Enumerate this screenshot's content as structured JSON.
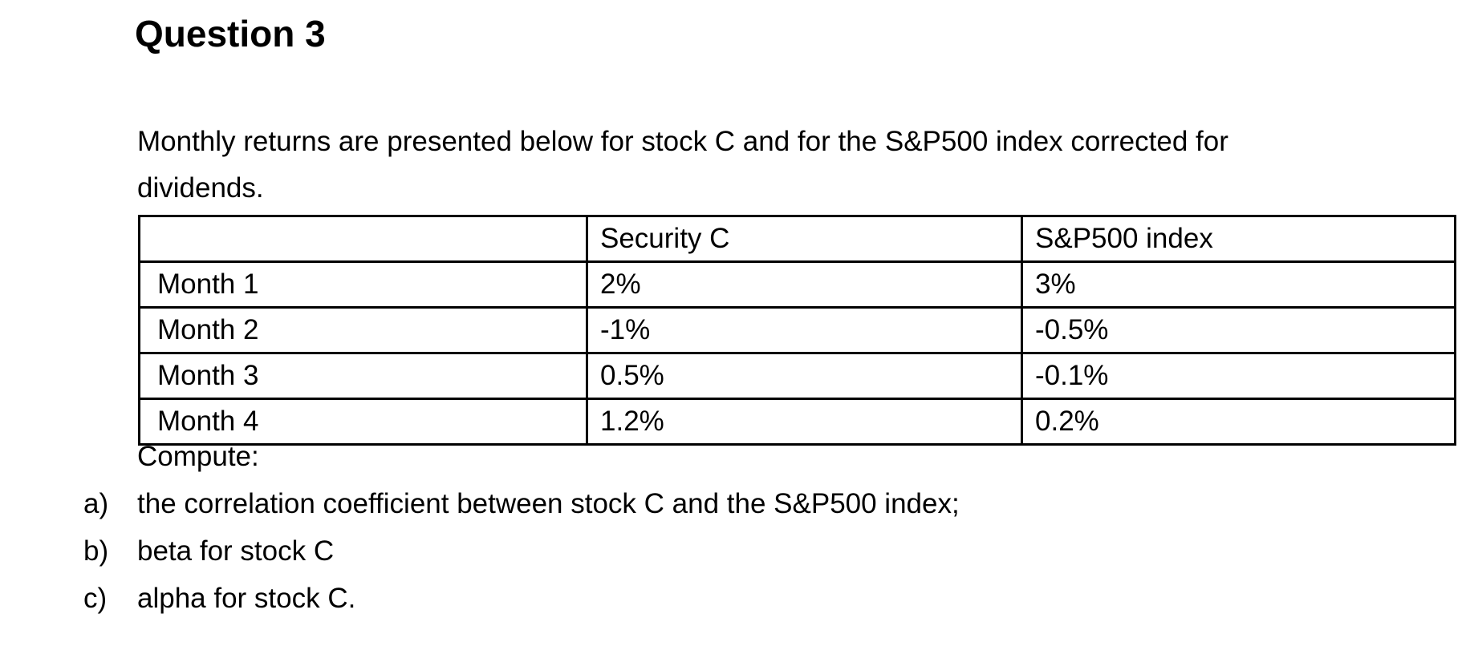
{
  "document": {
    "heading": "Question 3",
    "intro_lines": [
      "Monthly returns are presented below for stock C and for the S&P500 index corrected for",
      "dividends."
    ],
    "table": {
      "headers": [
        "",
        "Security C",
        "S&P500 index"
      ],
      "rows": [
        [
          "Month 1",
          "2%",
          "3%"
        ],
        [
          "Month 2",
          "-1%",
          "-0.5%"
        ],
        [
          "Month 3",
          "0.5%",
          "-0.1%"
        ],
        [
          "Month 4",
          "1.2%",
          "0.2%"
        ]
      ]
    },
    "compute_label": "Compute:",
    "tasks": [
      {
        "marker": "a)",
        "text": "the correlation coefficient between stock C and the S&P500 index;"
      },
      {
        "marker": "b)",
        "text": "beta for stock C"
      },
      {
        "marker": "c)",
        "text": "alpha for stock C."
      }
    ]
  },
  "colors": {
    "background": "#ffffff",
    "text": "#000000",
    "table_border": "#000000"
  }
}
